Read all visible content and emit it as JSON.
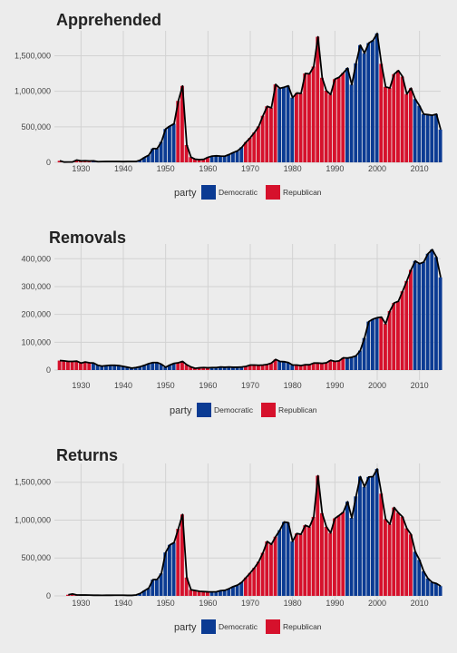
{
  "colors": {
    "Democratic": "#0b3b93",
    "Republican": "#d6112c",
    "background": "#ececec",
    "grid": "#d2d2d2",
    "line": "#000000"
  },
  "legend": {
    "title": "party",
    "labels": [
      "Democratic",
      "Republican"
    ]
  },
  "chart_data": [
    {
      "type": "area",
      "title": "Apprehended",
      "xlabel": "",
      "ylabel": "",
      "xlim": [
        1925,
        2015
      ],
      "ylim": [
        0,
        1800000
      ],
      "x_ticks": [
        1930,
        1940,
        1950,
        1960,
        1970,
        1980,
        1990,
        2000,
        2010
      ],
      "y_ticks": [
        0,
        500000,
        1000000,
        1500000
      ],
      "y_tick_labels": [
        "0",
        "500,000",
        "1,000,000",
        "1,500,000"
      ],
      "grid": true,
      "legend": "bottom",
      "party_periods": [
        {
          "start": 1925,
          "end": 1932,
          "party": "Republican"
        },
        {
          "start": 1933,
          "end": 1952,
          "party": "Democratic"
        },
        {
          "start": 1953,
          "end": 1960,
          "party": "Republican"
        },
        {
          "start": 1961,
          "end": 1968,
          "party": "Democratic"
        },
        {
          "start": 1969,
          "end": 1976,
          "party": "Republican"
        },
        {
          "start": 1977,
          "end": 1980,
          "party": "Democratic"
        },
        {
          "start": 1981,
          "end": 1992,
          "party": "Republican"
        },
        {
          "start": 1993,
          "end": 2000,
          "party": "Democratic"
        },
        {
          "start": 2001,
          "end": 2008,
          "party": "Republican"
        },
        {
          "start": 2009,
          "end": 2016,
          "party": "Democratic"
        }
      ],
      "x": [
        1925,
        1926,
        1927,
        1928,
        1929,
        1930,
        1931,
        1932,
        1933,
        1934,
        1935,
        1936,
        1937,
        1938,
        1939,
        1940,
        1941,
        1942,
        1943,
        1944,
        1945,
        1946,
        1947,
        1948,
        1949,
        1950,
        1951,
        1952,
        1953,
        1954,
        1955,
        1956,
        1957,
        1958,
        1959,
        1960,
        1961,
        1962,
        1963,
        1964,
        1965,
        1966,
        1967,
        1968,
        1969,
        1970,
        1971,
        1972,
        1973,
        1974,
        1975,
        1976,
        1977,
        1978,
        1979,
        1980,
        1981,
        1982,
        1983,
        1984,
        1985,
        1986,
        1987,
        1988,
        1989,
        1990,
        1991,
        1992,
        1993,
        1994,
        1995,
        1996,
        1997,
        1998,
        1999,
        2000,
        2001,
        2002,
        2003,
        2004,
        2005,
        2006,
        2007,
        2008,
        2009,
        2010,
        2011,
        2012,
        2013,
        2014,
        2015
      ],
      "values": [
        22000,
        4000,
        4600,
        5500,
        32000,
        20000,
        22000,
        19000,
        20000,
        10000,
        11000,
        11700,
        13000,
        12800,
        12000,
        10500,
        11700,
        11700,
        11900,
        31000,
        69000,
        100000,
        194000,
        193000,
        288000,
        469000,
        510000,
        543000,
        865000,
        1075000,
        243000,
        73000,
        44000,
        38000,
        42000,
        71000,
        88000,
        92000,
        88000,
        86000,
        110000,
        138000,
        162000,
        212000,
        284000,
        345000,
        420000,
        505000,
        655000,
        788000,
        767000,
        1097000,
        1042000,
        1057000,
        1077000,
        910000,
        976000,
        970000,
        1251000,
        1246000,
        1348000,
        1767000,
        1190000,
        1008000,
        954000,
        1170000,
        1198000,
        1259000,
        1327000,
        1094000,
        1394000,
        1649000,
        1537000,
        1679000,
        1715000,
        1814000,
        1387000,
        1062000,
        1046000,
        1241000,
        1292000,
        1206000,
        961000,
        1044000,
        890000,
        796000,
        678000,
        671000,
        662000,
        679000,
        462000
      ]
    },
    {
      "type": "area",
      "title": "Removals",
      "xlabel": "",
      "ylabel": "",
      "xlim": [
        1925,
        2015
      ],
      "ylim": [
        0,
        440000
      ],
      "x_ticks": [
        1930,
        1940,
        1950,
        1960,
        1970,
        1980,
        1990,
        2000,
        2010
      ],
      "y_ticks": [
        0,
        100000,
        200000,
        300000,
        400000
      ],
      "y_tick_labels": [
        "0",
        "100,000",
        "200,000",
        "300,000",
        "400,000"
      ],
      "grid": true,
      "legend": "bottom",
      "party_periods": [
        {
          "start": 1925,
          "end": 1932,
          "party": "Republican"
        },
        {
          "start": 1933,
          "end": 1952,
          "party": "Democratic"
        },
        {
          "start": 1953,
          "end": 1960,
          "party": "Republican"
        },
        {
          "start": 1961,
          "end": 1968,
          "party": "Democratic"
        },
        {
          "start": 1969,
          "end": 1976,
          "party": "Republican"
        },
        {
          "start": 1977,
          "end": 1980,
          "party": "Democratic"
        },
        {
          "start": 1981,
          "end": 1992,
          "party": "Republican"
        },
        {
          "start": 1993,
          "end": 2000,
          "party": "Democratic"
        },
        {
          "start": 2001,
          "end": 2008,
          "party": "Republican"
        },
        {
          "start": 2009,
          "end": 2016,
          "party": "Democratic"
        }
      ],
      "x": [
        1925,
        1926,
        1927,
        1928,
        1929,
        1930,
        1931,
        1932,
        1933,
        1934,
        1935,
        1936,
        1937,
        1938,
        1939,
        1940,
        1941,
        1942,
        1943,
        1944,
        1945,
        1946,
        1947,
        1948,
        1949,
        1950,
        1951,
        1952,
        1953,
        1954,
        1955,
        1956,
        1957,
        1958,
        1959,
        1960,
        1961,
        1962,
        1963,
        1964,
        1965,
        1966,
        1967,
        1968,
        1969,
        1970,
        1971,
        1972,
        1973,
        1974,
        1975,
        1976,
        1977,
        1978,
        1979,
        1980,
        1981,
        1982,
        1983,
        1984,
        1985,
        1986,
        1987,
        1988,
        1989,
        1990,
        1991,
        1992,
        1993,
        1994,
        1995,
        1996,
        1997,
        1998,
        1999,
        2000,
        2001,
        2002,
        2003,
        2004,
        2005,
        2006,
        2007,
        2008,
        2009,
        2010,
        2011,
        2012,
        2013,
        2014,
        2015
      ],
      "values": [
        34000,
        33000,
        31000,
        31000,
        32000,
        25000,
        29000,
        26000,
        25000,
        17000,
        14000,
        16000,
        17000,
        17000,
        16000,
        13000,
        10000,
        7000,
        9000,
        12000,
        17000,
        23000,
        27000,
        27000,
        21000,
        10000,
        18000,
        24000,
        26000,
        31000,
        19000,
        11000,
        6000,
        8000,
        9000,
        8000,
        9000,
        9000,
        11000,
        10000,
        11000,
        10000,
        10000,
        11000,
        13000,
        18000,
        18000,
        17000,
        18000,
        20000,
        25000,
        38000,
        31000,
        30000,
        27000,
        18000,
        18000,
        16000,
        19000,
        19000,
        25000,
        25000,
        24000,
        26000,
        35000,
        31000,
        33000,
        44000,
        43000,
        46000,
        51000,
        70000,
        115000,
        174000,
        183000,
        188000,
        190000,
        166000,
        212000,
        241000,
        247000,
        283000,
        320000,
        360000,
        392000,
        382000,
        388000,
        418000,
        433000,
        406000,
        333000
      ]
    },
    {
      "type": "area",
      "title": "Returns",
      "xlabel": "",
      "ylabel": "",
      "xlim": [
        1925,
        2015
      ],
      "ylim": [
        0,
        1700000
      ],
      "x_ticks": [
        1930,
        1940,
        1950,
        1960,
        1970,
        1980,
        1990,
        2000,
        2010
      ],
      "y_ticks": [
        0,
        500000,
        1000000,
        1500000
      ],
      "y_tick_labels": [
        "0",
        "500,000",
        "1,000,000",
        "1,500,000"
      ],
      "grid": true,
      "legend": "bottom",
      "party_periods": [
        {
          "start": 1925,
          "end": 1932,
          "party": "Republican"
        },
        {
          "start": 1933,
          "end": 1952,
          "party": "Democratic"
        },
        {
          "start": 1953,
          "end": 1960,
          "party": "Republican"
        },
        {
          "start": 1961,
          "end": 1968,
          "party": "Democratic"
        },
        {
          "start": 1969,
          "end": 1976,
          "party": "Republican"
        },
        {
          "start": 1977,
          "end": 1980,
          "party": "Democratic"
        },
        {
          "start": 1981,
          "end": 1992,
          "party": "Republican"
        },
        {
          "start": 1993,
          "end": 2000,
          "party": "Democratic"
        },
        {
          "start": 2001,
          "end": 2008,
          "party": "Republican"
        },
        {
          "start": 2009,
          "end": 2016,
          "party": "Democratic"
        }
      ],
      "x": [
        1927,
        1928,
        1929,
        1930,
        1931,
        1932,
        1933,
        1934,
        1935,
        1936,
        1937,
        1938,
        1939,
        1940,
        1941,
        1942,
        1943,
        1944,
        1945,
        1946,
        1947,
        1948,
        1949,
        1950,
        1951,
        1952,
        1953,
        1954,
        1955,
        1956,
        1957,
        1958,
        1959,
        1960,
        1961,
        1962,
        1963,
        1964,
        1965,
        1966,
        1967,
        1968,
        1969,
        1970,
        1971,
        1972,
        1973,
        1974,
        1975,
        1976,
        1977,
        1978,
        1979,
        1980,
        1981,
        1982,
        1983,
        1984,
        1985,
        1986,
        1987,
        1988,
        1989,
        1990,
        1991,
        1992,
        1993,
        1994,
        1995,
        1996,
        1997,
        1998,
        1999,
        2000,
        2001,
        2002,
        2003,
        2004,
        2005,
        2006,
        2007,
        2008,
        2009,
        2010,
        2011,
        2012,
        2013,
        2014,
        2015
      ],
      "values": [
        15000,
        25000,
        11700,
        11400,
        11700,
        10700,
        8000,
        8000,
        7800,
        8000,
        8400,
        9300,
        9000,
        8600,
        6500,
        6900,
        11900,
        32000,
        69000,
        101000,
        214000,
        217000,
        296000,
        573000,
        673000,
        703000,
        885000,
        1074000,
        242000,
        80000,
        70000,
        60000,
        56000,
        53000,
        52000,
        54000,
        69000,
        73000,
        95000,
        123000,
        142000,
        180000,
        241000,
        303000,
        370000,
        450000,
        568000,
        718000,
        680000,
        781000,
        867000,
        975000,
        967000,
        719000,
        823000,
        812000,
        931000,
        909000,
        1042000,
        1586000,
        1091000,
        911000,
        830000,
        1022000,
        1061000,
        1105000,
        1243000,
        1029000,
        1313000,
        1574000,
        1440000,
        1570000,
        1574000,
        1675000,
        1349000,
        1012000,
        945000,
        1166000,
        1097000,
        1043000,
        891000,
        811000,
        582000,
        475000,
        323000,
        230000,
        178000,
        163000,
        129000
      ]
    }
  ]
}
